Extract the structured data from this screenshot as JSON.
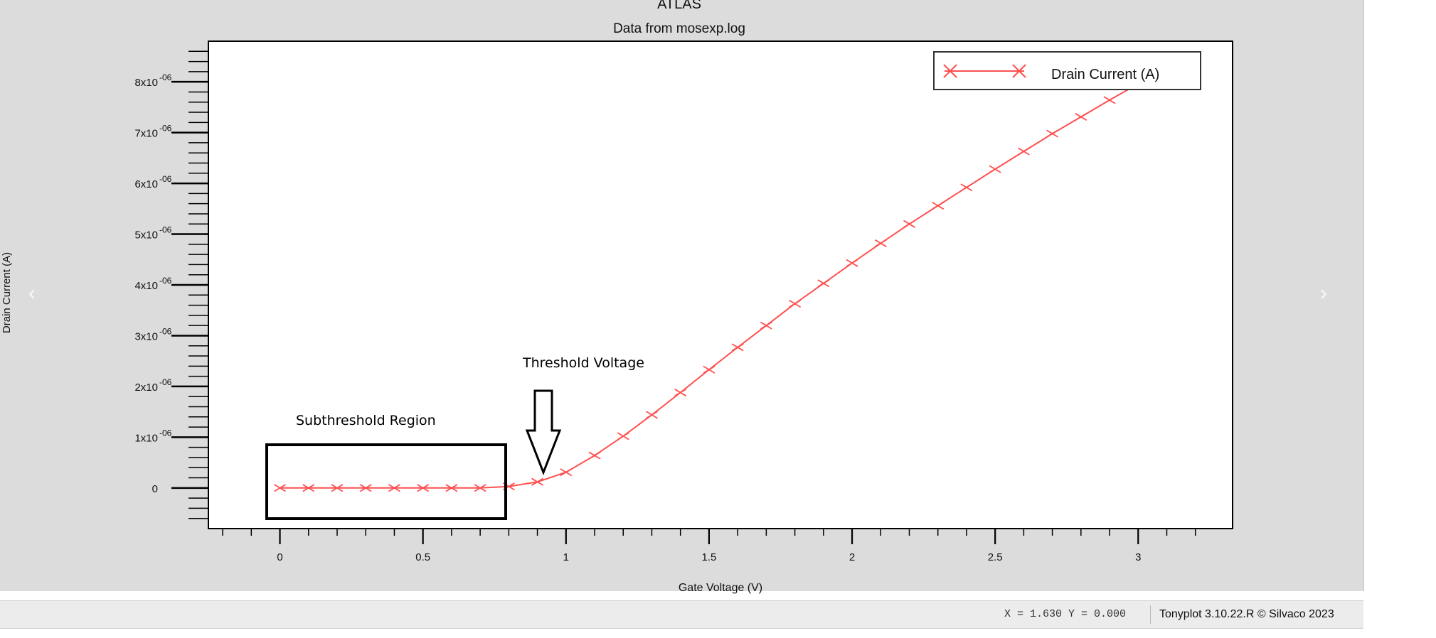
{
  "chart_data": {
    "type": "line",
    "title": "ATLAS",
    "subtitle": "Data from mosexp.log",
    "xlabel": "Gate Voltage (V)",
    "ylabel": "Drain Current (A)",
    "xlim": [
      -0.25,
      3.33
    ],
    "ylim": [
      -8e-07,
      8.8e-06
    ],
    "x_ticks": [
      {
        "value": 0,
        "label": "0"
      },
      {
        "value": 0.5,
        "label": "0.5"
      },
      {
        "value": 1,
        "label": "1"
      },
      {
        "value": 1.5,
        "label": "1.5"
      },
      {
        "value": 2,
        "label": "2"
      },
      {
        "value": 2.5,
        "label": "2.5"
      },
      {
        "value": 3,
        "label": "3"
      }
    ],
    "y_ticks": [
      {
        "value": 0,
        "label": "0",
        "exp": ""
      },
      {
        "value": 1e-06,
        "label": "1x10",
        "exp": "-06"
      },
      {
        "value": 2e-06,
        "label": "2x10",
        "exp": "-06"
      },
      {
        "value": 3e-06,
        "label": "3x10",
        "exp": "-06"
      },
      {
        "value": 4e-06,
        "label": "4x10",
        "exp": "-06"
      },
      {
        "value": 5e-06,
        "label": "5x10",
        "exp": "-06"
      },
      {
        "value": 6e-06,
        "label": "6x10",
        "exp": "-06"
      },
      {
        "value": 7e-06,
        "label": "7x10",
        "exp": "-06"
      },
      {
        "value": 8e-06,
        "label": "8x10",
        "exp": "-06"
      }
    ],
    "series": [
      {
        "name": "Drain Current (A)",
        "color": "#ff5050",
        "marker": "x",
        "x": [
          0,
          0.1,
          0.2,
          0.3,
          0.4,
          0.5,
          0.6,
          0.7,
          0.8,
          0.9,
          1.0,
          1.1,
          1.2,
          1.3,
          1.4,
          1.5,
          1.6,
          1.7,
          1.8,
          1.9,
          2.0,
          2.1,
          2.2,
          2.3,
          2.4,
          2.5,
          2.6,
          2.7,
          2.8,
          2.9,
          3.0
        ],
        "y": [
          0,
          0,
          0,
          0,
          0,
          0,
          0,
          0,
          3e-08,
          1.2e-07,
          3.1e-07,
          6.4e-07,
          1.02e-06,
          1.44e-06,
          1.88e-06,
          2.33e-06,
          2.77e-06,
          3.2e-06,
          3.63e-06,
          4.03e-06,
          4.43e-06,
          4.82e-06,
          5.2e-06,
          5.56e-06,
          5.92e-06,
          6.28e-06,
          6.63e-06,
          6.98e-06,
          7.31e-06,
          7.64e-06,
          7.96e-06
        ]
      }
    ],
    "legend": "top-right",
    "grid": false,
    "annotations": {
      "threshold": "Threshold Voltage",
      "subthreshold": "Subthreshold Region"
    }
  },
  "status": {
    "coords": "X = 1.630 Y = 0.000",
    "version": "Tonyplot 3.10.22.R © Silvaco 2023"
  },
  "colors": {
    "panel": "#dcdcdc",
    "plot_bg": "#ffffff",
    "series": "#ff5050"
  }
}
